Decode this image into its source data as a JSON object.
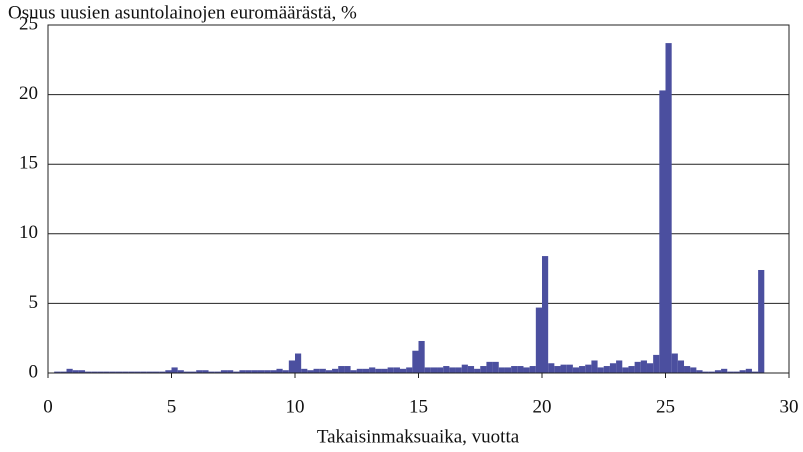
{
  "chart_data": {
    "type": "histogram",
    "title": "Osuus uusien asuntolainojen euromäärästä, %",
    "xlabel": "Takaisinmaksuaika, vuotta",
    "color": "#4b4f9f",
    "bins": [
      0.25,
      0.5,
      0.75,
      1,
      1.25,
      1.5,
      1.75,
      2,
      2.25,
      2.5,
      2.75,
      3,
      3.25,
      3.5,
      3.75,
      4,
      4.25,
      4.5,
      4.75,
      5,
      5.25,
      5.5,
      5.75,
      6,
      6.25,
      6.5,
      6.75,
      7,
      7.25,
      7.5,
      7.75,
      8,
      8.25,
      8.5,
      8.75,
      9,
      9.25,
      9.5,
      9.75,
      10,
      10.25,
      10.5,
      10.75,
      11,
      11.25,
      11.5,
      11.75,
      12,
      12.25,
      12.5,
      12.75,
      13,
      13.25,
      13.5,
      13.75,
      14,
      14.25,
      14.5,
      14.75,
      15,
      15.25,
      15.5,
      15.75,
      16,
      16.25,
      16.5,
      16.75,
      17,
      17.25,
      17.5,
      17.75,
      18,
      18.25,
      18.5,
      18.75,
      19,
      19.25,
      19.5,
      19.75,
      20,
      20.25,
      20.5,
      20.75,
      21,
      21.25,
      21.5,
      21.75,
      22,
      22.25,
      22.5,
      22.75,
      23,
      23.25,
      23.5,
      23.75,
      24,
      24.25,
      24.5,
      24.75,
      25,
      25.25,
      25.5,
      25.75,
      26,
      26.25,
      26.5,
      26.75,
      27,
      27.25,
      27.5,
      27.75,
      28,
      28.25,
      28.5,
      28.75,
      29
    ],
    "values": [
      0.1,
      0.1,
      0.3,
      0.2,
      0.2,
      0.1,
      0.1,
      0.1,
      0.1,
      0.1,
      0.1,
      0.1,
      0.1,
      0.1,
      0.1,
      0.1,
      0.1,
      0.1,
      0.2,
      0.4,
      0.2,
      0.1,
      0.1,
      0.2,
      0.2,
      0.1,
      0.1,
      0.2,
      0.2,
      0.1,
      0.2,
      0.2,
      0.2,
      0.2,
      0.2,
      0.2,
      0.3,
      0.2,
      0.9,
      1.4,
      0.3,
      0.2,
      0.3,
      0.3,
      0.2,
      0.3,
      0.5,
      0.5,
      0.2,
      0.3,
      0.3,
      0.4,
      0.3,
      0.3,
      0.4,
      0.4,
      0.3,
      0.4,
      1.6,
      2.3,
      0.4,
      0.4,
      0.4,
      0.5,
      0.4,
      0.4,
      0.6,
      0.5,
      0.3,
      0.5,
      0.8,
      0.8,
      0.4,
      0.4,
      0.5,
      0.5,
      0.4,
      0.5,
      4.7,
      8.4,
      0.7,
      0.5,
      0.6,
      0.6,
      0.4,
      0.5,
      0.6,
      0.9,
      0.4,
      0.5,
      0.7,
      0.9,
      0.4,
      0.5,
      0.8,
      0.9,
      0.7,
      1.3,
      20.3,
      23.7,
      1.4,
      0.9,
      0.5,
      0.4,
      0.2,
      0.1,
      0.1,
      0.2,
      0.3,
      0.1,
      0.1,
      0.2,
      0.3,
      0.1,
      7.4
    ],
    "xlim": [
      0,
      30
    ],
    "xticks": [
      0,
      5,
      10,
      15,
      20,
      25,
      30
    ],
    "ylim": [
      0,
      25
    ],
    "yticks": [
      0,
      5,
      10,
      15,
      20,
      25
    ],
    "grid": true
  }
}
